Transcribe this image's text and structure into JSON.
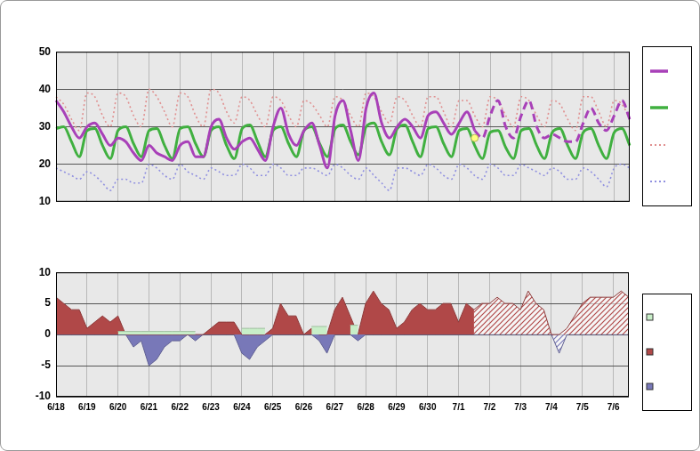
{
  "chart_data": [
    {
      "type": "line",
      "categories": [
        "6/18",
        null,
        null,
        null,
        "6/19",
        null,
        null,
        null,
        "6/20",
        null,
        null,
        null,
        "6/21",
        null,
        null,
        null,
        "6/22",
        null,
        null,
        null,
        "6/23",
        null,
        null,
        null,
        "6/24",
        null,
        null,
        null,
        "6/25",
        null,
        null,
        null,
        "6/26",
        null,
        null,
        null,
        "6/27",
        null,
        null,
        null,
        "6/28",
        null,
        null,
        null,
        "6/29",
        null,
        null,
        null,
        "6/30",
        null,
        null,
        null,
        "7/1",
        null,
        null,
        null,
        "7/2",
        null,
        null,
        null,
        "7/3",
        null,
        null,
        null,
        "7/4",
        null,
        null,
        null,
        "7/5",
        null,
        null,
        null,
        "7/6",
        null,
        null
      ],
      "series": [
        {
          "color": "#a840b8",
          "line_style": "solid",
          "values": [
            37,
            34,
            30,
            27,
            30,
            31,
            28,
            25,
            27,
            26,
            23,
            21,
            25,
            23,
            22,
            21,
            25,
            26,
            22,
            22,
            30,
            32,
            27,
            24,
            26,
            27,
            24,
            21,
            30,
            35,
            28,
            25,
            29,
            31,
            25,
            19,
            33,
            37,
            29,
            21,
            35,
            39,
            31,
            27,
            30,
            32,
            30,
            27,
            33,
            34,
            31,
            28,
            31,
            34,
            29,
            null,
            null,
            null,
            null,
            null,
            null,
            null,
            null,
            null,
            null,
            null,
            null,
            null,
            null,
            null,
            null,
            null,
            null,
            null,
            null
          ]
        },
        {
          "color": "#a840b8",
          "line_style": "dashed",
          "values": [
            null,
            null,
            null,
            null,
            null,
            null,
            null,
            null,
            null,
            null,
            null,
            null,
            null,
            null,
            null,
            null,
            null,
            null,
            null,
            null,
            null,
            null,
            null,
            null,
            null,
            null,
            null,
            null,
            null,
            null,
            null,
            null,
            null,
            null,
            null,
            null,
            null,
            null,
            null,
            null,
            null,
            null,
            null,
            null,
            null,
            null,
            null,
            null,
            null,
            null,
            null,
            null,
            null,
            null,
            29,
            27,
            33,
            37,
            30,
            27,
            33,
            37,
            30,
            27,
            28,
            27,
            26,
            26,
            31,
            35,
            31,
            29,
            33,
            37,
            32
          ]
        },
        {
          "color": "#40b040",
          "line_style": "solid",
          "values": [
            29.5,
            30,
            26,
            22,
            29,
            29.5,
            25,
            21.5,
            29,
            30,
            25.5,
            22,
            29,
            29.5,
            25,
            21.5,
            29.5,
            30,
            25.5,
            22,
            29,
            30,
            25,
            21.5,
            29.5,
            30.5,
            26,
            22,
            29,
            30,
            25.5,
            22,
            29,
            30,
            25.5,
            22,
            29.5,
            30.5,
            26,
            22.5,
            30,
            31,
            26,
            22.5,
            29.5,
            30.5,
            26,
            22,
            29.5,
            30,
            25.5,
            22,
            29,
            29.5,
            25,
            21.5,
            28.5,
            29,
            24.5,
            21.5,
            29,
            29.5,
            25,
            21.5,
            28.5,
            29.5,
            25,
            21.5,
            28.5,
            29.5,
            25,
            21.5,
            28.5,
            29.5,
            25
          ]
        },
        {
          "color": "#e09090",
          "line_style": "dotted",
          "values": [
            38,
            36,
            32,
            29,
            39,
            38,
            33,
            30,
            39,
            38,
            33,
            30,
            40,
            38,
            34,
            30,
            39,
            38,
            33,
            30,
            40,
            39,
            34,
            31,
            38,
            37,
            33,
            30,
            38,
            37,
            33,
            30,
            37,
            36,
            33,
            30,
            38,
            37,
            33,
            30,
            39,
            38,
            34,
            31,
            38,
            37,
            33,
            30,
            38,
            38,
            34,
            30,
            37,
            37,
            33,
            30,
            38,
            37,
            33,
            30,
            38,
            37,
            33,
            30,
            37,
            36,
            32,
            29,
            38,
            38,
            34,
            30,
            37,
            36,
            32
          ]
        },
        {
          "color": "#9090e0",
          "line_style": "dotted",
          "values": [
            19,
            18,
            17,
            16,
            18,
            17,
            15,
            13,
            16,
            16,
            15,
            15,
            20,
            19,
            17,
            16,
            20,
            18,
            17,
            16,
            19,
            18,
            17,
            17,
            20,
            19,
            17,
            17,
            20,
            19,
            17,
            17,
            19,
            19,
            18,
            17,
            20,
            19,
            17,
            16,
            19,
            17,
            15,
            13,
            19,
            19,
            18,
            17,
            20,
            19,
            17,
            16,
            20,
            19,
            17,
            16,
            20,
            19,
            17,
            17,
            20,
            19,
            18,
            17,
            19,
            18,
            16,
            16,
            19,
            18,
            16,
            14,
            19,
            20,
            19
          ]
        },
        {
          "type": "scatter",
          "marker": "circle",
          "color": "#ffff80",
          "values": [
            null,
            null,
            null,
            null,
            null,
            null,
            null,
            null,
            null,
            null,
            null,
            null,
            null,
            null,
            null,
            null,
            null,
            null,
            null,
            null,
            null,
            null,
            null,
            null,
            null,
            null,
            null,
            null,
            null,
            null,
            null,
            null,
            null,
            null,
            null,
            null,
            null,
            null,
            null,
            null,
            null,
            null,
            null,
            null,
            null,
            null,
            null,
            null,
            null,
            null,
            null,
            null,
            null,
            null,
            27,
            null,
            null,
            null,
            null,
            null,
            null,
            null,
            null,
            null,
            null,
            null,
            null,
            null,
            null,
            null,
            null,
            null,
            null,
            null,
            null
          ]
        }
      ],
      "ylim": [
        10,
        50
      ],
      "yticks": [
        10,
        20,
        30,
        40,
        50
      ],
      "grid": true,
      "legend": "right",
      "tick_labels": "y"
    },
    {
      "type": "area",
      "categories": [
        "6/18",
        null,
        null,
        null,
        "6/19",
        null,
        null,
        null,
        "6/20",
        null,
        null,
        null,
        "6/21",
        null,
        null,
        null,
        "6/22",
        null,
        null,
        null,
        "6/23",
        null,
        null,
        null,
        "6/24",
        null,
        null,
        null,
        "6/25",
        null,
        null,
        null,
        "6/26",
        null,
        null,
        null,
        "6/27",
        null,
        null,
        null,
        "6/28",
        null,
        null,
        null,
        "6/29",
        null,
        null,
        null,
        "6/30",
        null,
        null,
        null,
        "7/1",
        null,
        null,
        null,
        "7/2",
        null,
        null,
        null,
        "7/3",
        null,
        null,
        null,
        "7/4",
        null,
        null,
        null,
        "7/5",
        null,
        null,
        null,
        "7/6",
        null,
        null
      ],
      "series": [
        {
          "color": "#c8eec8",
          "line_style": "solid",
          "values": [
            null,
            null,
            null,
            null,
            null,
            null,
            null,
            null,
            0.5,
            0.5,
            0.5,
            0.5,
            0.5,
            0.5,
            0.5,
            0.5,
            0.5,
            0.5,
            0.5,
            null,
            null,
            null,
            null,
            null,
            1,
            1,
            1,
            1,
            null,
            null,
            null,
            null,
            null,
            1.3,
            1.3,
            1.3,
            null,
            null,
            1.5,
            1.5,
            null,
            null,
            null,
            null,
            null,
            null,
            null,
            null,
            null,
            null,
            null,
            null,
            null,
            null,
            null,
            null,
            null,
            null,
            null,
            null,
            null,
            null,
            null,
            null,
            null,
            null,
            null,
            null,
            null,
            null,
            null,
            null,
            null,
            null,
            null
          ]
        },
        {
          "color": "#b04848",
          "line_style": "solid",
          "values": [
            6,
            5,
            4,
            4,
            1,
            2,
            3,
            2,
            3,
            0,
            0,
            0,
            0,
            0,
            0,
            0,
            0,
            0,
            0,
            0,
            1,
            2,
            2,
            2,
            0,
            0,
            0,
            0,
            1,
            5,
            3,
            3,
            0,
            1,
            0,
            0,
            4,
            6,
            3,
            0,
            5,
            7,
            5,
            4,
            1,
            2,
            4,
            5,
            4,
            4,
            5,
            5,
            2,
            5,
            4,
            null,
            null,
            null,
            null,
            null,
            null,
            null,
            null,
            null,
            null,
            null,
            null,
            null,
            null,
            null,
            null,
            null,
            null,
            null,
            null
          ]
        },
        {
          "color": "#7878b8",
          "line_style": "solid",
          "values": [
            0,
            0,
            0,
            0,
            0,
            0,
            0,
            0,
            0,
            0,
            -2,
            -1,
            -5,
            -4,
            -2,
            -1,
            -1,
            0,
            -1,
            0,
            0,
            0,
            0,
            0,
            -3,
            -4,
            -2,
            -1,
            0,
            0,
            0,
            0,
            0,
            0,
            -1,
            -3,
            0,
            0,
            0,
            -1,
            0,
            0,
            0,
            0,
            0,
            0,
            0,
            0,
            0,
            0,
            0,
            0,
            0,
            0,
            0,
            null,
            null,
            null,
            null,
            null,
            null,
            null,
            null,
            null,
            null,
            null,
            null,
            null,
            null,
            null,
            null,
            null,
            null,
            null,
            null
          ]
        },
        {
          "color": "#b04848",
          "line_style": "hatched",
          "values": [
            null,
            null,
            null,
            null,
            null,
            null,
            null,
            null,
            null,
            null,
            null,
            null,
            null,
            null,
            null,
            null,
            null,
            null,
            null,
            null,
            null,
            null,
            null,
            null,
            null,
            null,
            null,
            null,
            null,
            null,
            null,
            null,
            null,
            null,
            null,
            null,
            null,
            null,
            null,
            null,
            null,
            null,
            null,
            null,
            null,
            null,
            null,
            null,
            null,
            null,
            null,
            null,
            null,
            null,
            4,
            5,
            5,
            6,
            5,
            5,
            4,
            7,
            5,
            4,
            0,
            0,
            1,
            3,
            5,
            6,
            6,
            6,
            6,
            7,
            6
          ]
        },
        {
          "color": "#7878b8",
          "line_style": "hatched",
          "values": [
            null,
            null,
            null,
            null,
            null,
            null,
            null,
            null,
            null,
            null,
            null,
            null,
            null,
            null,
            null,
            null,
            null,
            null,
            null,
            null,
            null,
            null,
            null,
            null,
            null,
            null,
            null,
            null,
            null,
            null,
            null,
            null,
            null,
            null,
            null,
            null,
            null,
            null,
            null,
            null,
            null,
            null,
            null,
            null,
            null,
            null,
            null,
            null,
            null,
            null,
            null,
            null,
            null,
            null,
            0,
            0,
            0,
            0,
            0,
            0,
            0,
            0,
            0,
            0,
            0,
            -3,
            0,
            0,
            0,
            0,
            0,
            0,
            0,
            0,
            0
          ]
        }
      ],
      "ylim": [
        -10,
        10
      ],
      "yticks": [
        -10,
        -5,
        0,
        5,
        10
      ],
      "grid": true,
      "legend": "right"
    }
  ]
}
